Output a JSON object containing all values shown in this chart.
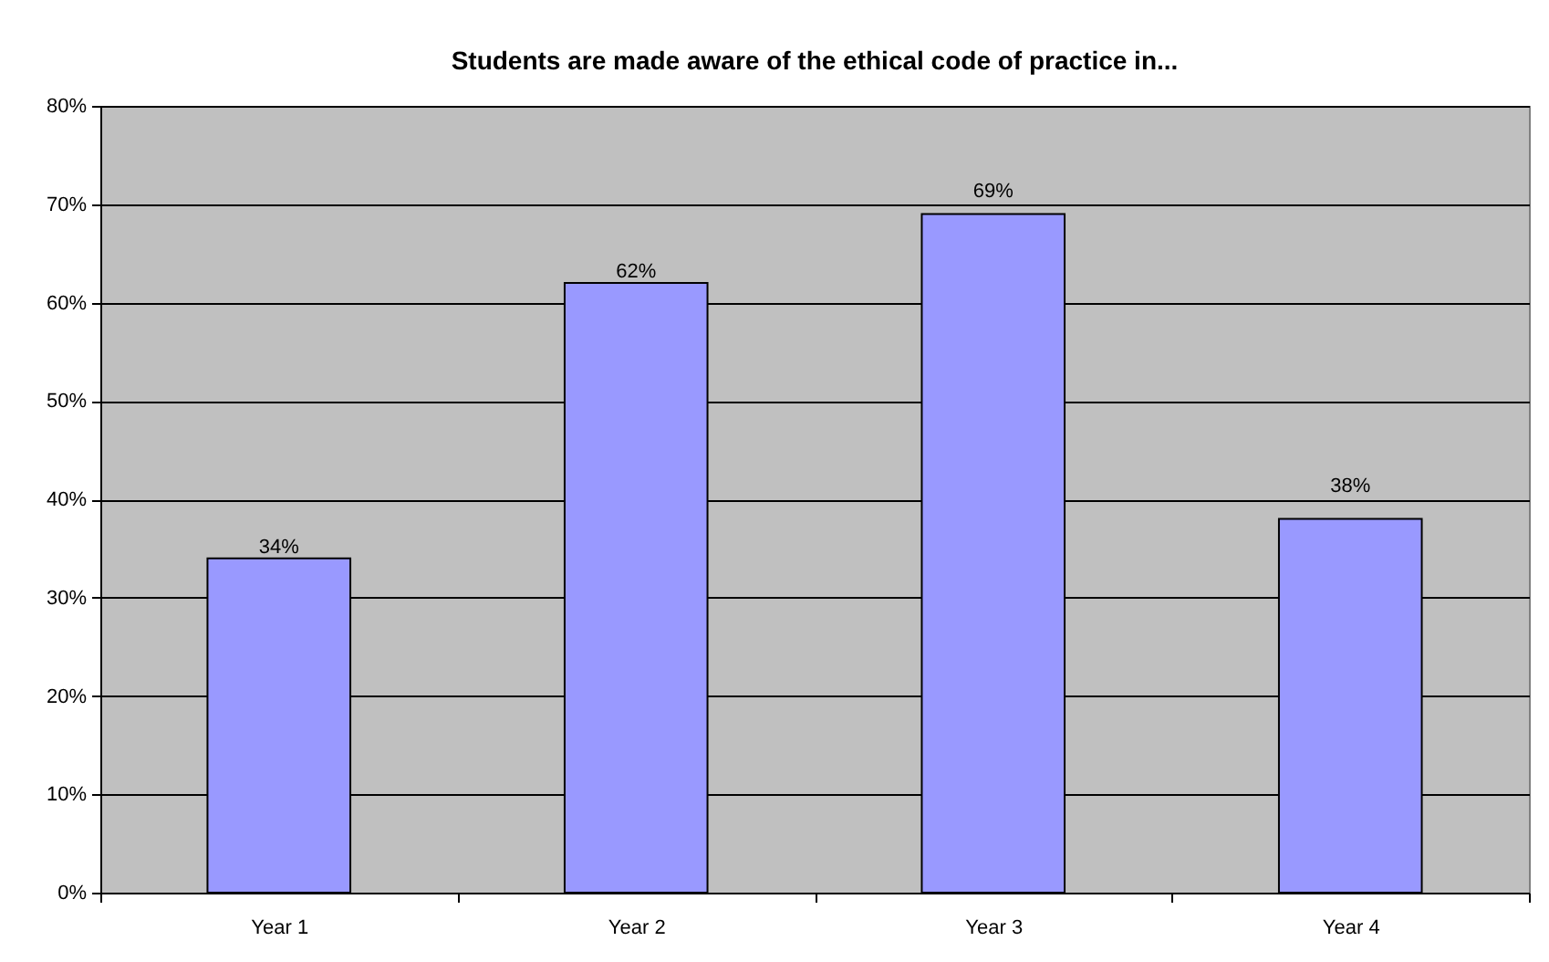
{
  "chart_data": {
    "type": "bar",
    "title": "Students are made aware of the ethical code of practice in...",
    "categories": [
      "Year 1",
      "Year 2",
      "Year 3",
      "Year 4"
    ],
    "values": [
      34,
      62,
      69,
      38
    ],
    "color": "#9999ff",
    "value_labels": [
      "34%",
      "62%",
      "69%",
      "38%"
    ],
    "ylim": [
      0,
      80
    ],
    "yticks": [
      {
        "value": 0,
        "label": "0%"
      },
      {
        "value": 10,
        "label": "10%"
      },
      {
        "value": 20,
        "label": "20%"
      },
      {
        "value": 30,
        "label": "30%"
      },
      {
        "value": 40,
        "label": "40%"
      },
      {
        "value": 50,
        "label": "50%"
      },
      {
        "value": 60,
        "label": "60%"
      },
      {
        "value": 70,
        "label": "70%"
      },
      {
        "value": 80,
        "label": "80%"
      }
    ],
    "grid": "y"
  }
}
